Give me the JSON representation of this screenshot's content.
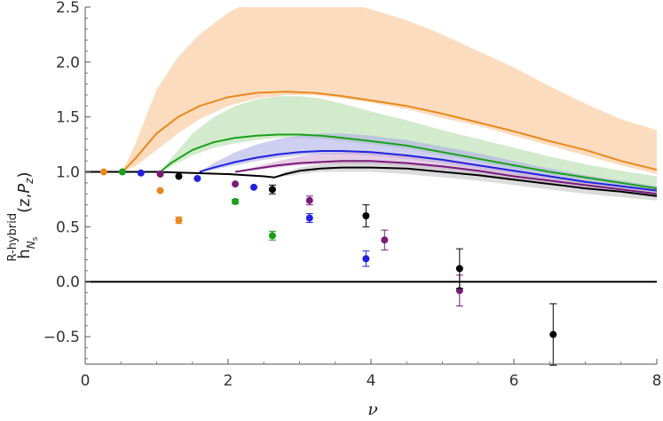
{
  "chart_data": {
    "type": "line",
    "xlabel": "ν",
    "ylabel": {
      "main": "h",
      "superscript": "R-hybrid",
      "subscript": "N",
      "subsubscript": "s",
      "args_open": "(z,",
      "args_P": "P",
      "args_z": "z",
      "args_close": ")"
    },
    "xlim": [
      0,
      8
    ],
    "ylim": [
      -0.75,
      2.5
    ],
    "xticks": [
      0,
      2,
      4,
      6,
      8
    ],
    "yticks": [
      -0.5,
      0.0,
      0.5,
      1.0,
      1.5,
      2.0,
      2.5
    ],
    "xtick_labels": [
      "0",
      "2",
      "4",
      "6",
      "8"
    ],
    "ytick_labels": [
      "−0.5",
      "0.0",
      "0.5",
      "1.0",
      "1.5",
      "2.0",
      "2.5"
    ],
    "grid": false,
    "zero_line": true,
    "series": [
      {
        "color": "#e8891e",
        "fill": "#f9c08a",
        "x": [
          0.52,
          0.7,
          1.0,
          1.3,
          1.6,
          2.0,
          2.4,
          2.8,
          3.2,
          3.6,
          4.0,
          4.5,
          5.0,
          5.5,
          6.0,
          6.5,
          7.0,
          7.5,
          8.0
        ],
        "y": [
          1.0,
          1.12,
          1.35,
          1.5,
          1.6,
          1.68,
          1.72,
          1.73,
          1.72,
          1.69,
          1.65,
          1.6,
          1.53,
          1.45,
          1.37,
          1.28,
          1.2,
          1.1,
          1.02
        ],
        "upper": [
          1.0,
          1.25,
          1.75,
          2.05,
          2.25,
          2.45,
          2.58,
          2.62,
          2.6,
          2.55,
          2.48,
          2.38,
          2.25,
          2.1,
          1.95,
          1.78,
          1.62,
          1.48,
          1.38
        ],
        "lower": [
          1.0,
          1.05,
          1.2,
          1.35,
          1.48,
          1.6,
          1.67,
          1.7,
          1.7,
          1.67,
          1.63,
          1.57,
          1.49,
          1.42,
          1.33,
          1.24,
          1.15,
          1.06,
          0.98
        ]
      },
      {
        "color": "#1aa01a",
        "fill": "#aedaa4",
        "x": [
          1.05,
          1.2,
          1.5,
          1.8,
          2.1,
          2.4,
          2.7,
          3.0,
          3.3,
          3.6,
          4.0,
          4.5,
          5.0,
          5.5,
          6.0,
          6.5,
          7.0,
          7.5,
          8.0
        ],
        "y": [
          1.0,
          1.08,
          1.2,
          1.27,
          1.31,
          1.33,
          1.34,
          1.34,
          1.33,
          1.31,
          1.28,
          1.24,
          1.18,
          1.12,
          1.06,
          1.0,
          0.95,
          0.9,
          0.85
        ],
        "upper": [
          1.0,
          1.12,
          1.35,
          1.5,
          1.6,
          1.66,
          1.69,
          1.69,
          1.67,
          1.62,
          1.55,
          1.47,
          1.38,
          1.3,
          1.22,
          1.14,
          1.07,
          1.01,
          0.96
        ],
        "lower": [
          1.0,
          1.05,
          1.15,
          1.22,
          1.26,
          1.29,
          1.31,
          1.31,
          1.3,
          1.28,
          1.25,
          1.21,
          1.15,
          1.09,
          1.03,
          0.97,
          0.92,
          0.87,
          0.82
        ]
      },
      {
        "color": "#2222dd",
        "fill": "#a7a7e8",
        "x": [
          1.6,
          1.8,
          2.1,
          2.4,
          2.7,
          3.0,
          3.3,
          3.6,
          4.0,
          4.5,
          5.0,
          5.5,
          6.0,
          6.5,
          7.0,
          7.5,
          8.0
        ],
        "y": [
          1.0,
          1.04,
          1.09,
          1.13,
          1.16,
          1.18,
          1.19,
          1.19,
          1.18,
          1.15,
          1.11,
          1.06,
          1.01,
          0.96,
          0.91,
          0.87,
          0.83
        ],
        "upper": [
          1.0,
          1.08,
          1.18,
          1.25,
          1.3,
          1.33,
          1.35,
          1.35,
          1.33,
          1.29,
          1.23,
          1.17,
          1.1,
          1.03,
          0.97,
          0.92,
          0.87
        ],
        "lower": [
          1.0,
          1.02,
          1.06,
          1.1,
          1.13,
          1.15,
          1.16,
          1.16,
          1.15,
          1.12,
          1.08,
          1.03,
          0.98,
          0.93,
          0.88,
          0.84,
          0.79
        ]
      },
      {
        "color": "#7a1a7a",
        "fill": "#cfa6cf",
        "x": [
          2.1,
          2.4,
          2.7,
          3.0,
          3.3,
          3.6,
          4.0,
          4.5,
          5.0,
          5.5,
          6.0,
          6.5,
          7.0,
          7.5,
          8.0
        ],
        "y": [
          1.0,
          1.03,
          1.06,
          1.08,
          1.09,
          1.1,
          1.1,
          1.08,
          1.05,
          1.01,
          0.96,
          0.92,
          0.88,
          0.84,
          0.8
        ],
        "upper": [
          1.0,
          1.05,
          1.1,
          1.14,
          1.17,
          1.18,
          1.18,
          1.16,
          1.12,
          1.07,
          1.01,
          0.96,
          0.91,
          0.87,
          0.83
        ],
        "lower": [
          1.0,
          1.02,
          1.04,
          1.06,
          1.07,
          1.07,
          1.07,
          1.05,
          1.02,
          0.98,
          0.93,
          0.89,
          0.85,
          0.81,
          0.77
        ]
      },
      {
        "color": "#000000",
        "fill": "#c0c0c0",
        "x": [
          0.0,
          0.5,
          1.0,
          1.5,
          2.0,
          2.5,
          2.65,
          2.8,
          3.0,
          3.3,
          3.6,
          4.0,
          4.5,
          5.0,
          5.5,
          6.0,
          6.5,
          7.0,
          7.5,
          8.0
        ],
        "y": [
          1.0,
          1.0,
          1.0,
          0.99,
          0.98,
          0.96,
          0.95,
          0.98,
          1.01,
          1.03,
          1.04,
          1.04,
          1.03,
          1.0,
          0.97,
          0.93,
          0.89,
          0.85,
          0.82,
          0.78
        ],
        "upper": [
          1.0,
          1.0,
          1.0,
          0.99,
          0.98,
          0.96,
          0.95,
          1.0,
          1.04,
          1.07,
          1.09,
          1.1,
          1.09,
          1.06,
          1.02,
          0.98,
          0.94,
          0.9,
          0.86,
          0.82
        ],
        "lower": [
          1.0,
          1.0,
          1.0,
          0.99,
          0.98,
          0.96,
          0.95,
          0.96,
          0.98,
          1.0,
          1.0,
          1.0,
          0.98,
          0.95,
          0.92,
          0.88,
          0.84,
          0.8,
          0.77,
          0.74
        ]
      }
    ],
    "points": [
      {
        "color": "#e8891e",
        "x": 0.26,
        "y": 1.0,
        "err": 0.0
      },
      {
        "color": "#e8891e",
        "x": 1.05,
        "y": 0.83,
        "err": 0.0
      },
      {
        "color": "#e8891e",
        "x": 1.31,
        "y": 0.56,
        "err": 0.03
      },
      {
        "color": "#1aa01a",
        "x": 0.52,
        "y": 1.0,
        "err": 0.0
      },
      {
        "color": "#1aa01a",
        "x": 2.1,
        "y": 0.73,
        "err": 0.02
      },
      {
        "color": "#1aa01a",
        "x": 2.62,
        "y": 0.42,
        "err": 0.04
      },
      {
        "color": "#2222dd",
        "x": 0.78,
        "y": 0.99,
        "err": 0.0
      },
      {
        "color": "#2222dd",
        "x": 1.57,
        "y": 0.94,
        "err": 0.0
      },
      {
        "color": "#2222dd",
        "x": 2.36,
        "y": 0.86,
        "err": 0.0
      },
      {
        "color": "#2222dd",
        "x": 3.14,
        "y": 0.58,
        "err": 0.04
      },
      {
        "color": "#2222dd",
        "x": 3.93,
        "y": 0.21,
        "err": 0.07
      },
      {
        "color": "#7a1a7a",
        "x": 1.05,
        "y": 0.98,
        "err": 0.0
      },
      {
        "color": "#7a1a7a",
        "x": 2.1,
        "y": 0.89,
        "err": 0.0
      },
      {
        "color": "#7a1a7a",
        "x": 3.14,
        "y": 0.74,
        "err": 0.04
      },
      {
        "color": "#7a1a7a",
        "x": 4.19,
        "y": 0.38,
        "err": 0.09
      },
      {
        "color": "#7a1a7a",
        "x": 5.24,
        "y": -0.08,
        "err": 0.14
      },
      {
        "color": "#000000",
        "x": 1.31,
        "y": 0.96,
        "err": 0.0
      },
      {
        "color": "#000000",
        "x": 2.62,
        "y": 0.84,
        "err": 0.04
      },
      {
        "color": "#000000",
        "x": 3.93,
        "y": 0.6,
        "err": 0.1
      },
      {
        "color": "#000000",
        "x": 5.24,
        "y": 0.12,
        "err": 0.18
      },
      {
        "color": "#000000",
        "x": 6.55,
        "y": -0.48,
        "err": 0.28
      }
    ]
  }
}
